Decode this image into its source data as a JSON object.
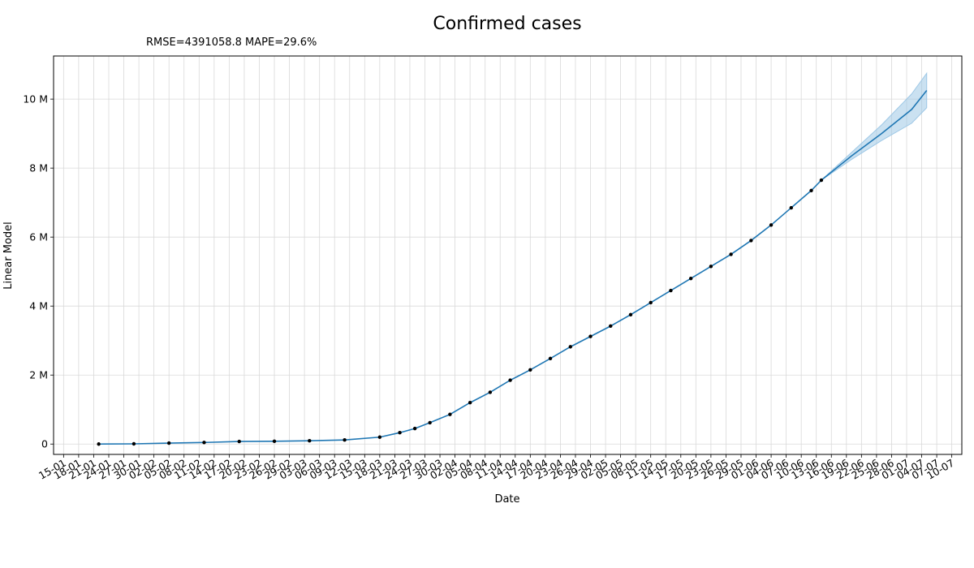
{
  "chart_data": {
    "type": "line",
    "title": "Confirmed cases",
    "subtitle": "RMSE=4391058.8 MAPE=29.6%",
    "xlabel": "Date",
    "ylabel": "Linear Model",
    "xlim": [
      "2020-01-13",
      "2020-07-12"
    ],
    "ylim": [
      -300000,
      11250000
    ],
    "grid": true,
    "x_ticks": [
      "15-01",
      "18-01",
      "21-01",
      "24-01",
      "27-01",
      "30-01",
      "02-02",
      "05-02",
      "08-02",
      "11-02",
      "14-02",
      "17-02",
      "20-02",
      "23-02",
      "26-02",
      "29-02",
      "03-03",
      "06-03",
      "09-03",
      "12-03",
      "15-03",
      "18-03",
      "21-03",
      "24-03",
      "27-03",
      "30-03",
      "02-04",
      "05-04",
      "08-04",
      "11-04",
      "14-04",
      "17-04",
      "20-04",
      "23-04",
      "26-04",
      "29-04",
      "02-05",
      "05-05",
      "08-05",
      "11-05",
      "14-05",
      "17-05",
      "20-05",
      "23-05",
      "26-05",
      "29-05",
      "01-06",
      "04-06",
      "07-06",
      "10-06",
      "13-06",
      "16-06",
      "19-06",
      "22-06",
      "25-06",
      "28-06",
      "01-07",
      "04-07",
      "07-07",
      "10-07"
    ],
    "y_ticks": [
      {
        "value": 0,
        "label": "0"
      },
      {
        "value": 2000000,
        "label": "2 M"
      },
      {
        "value": 4000000,
        "label": "4 M"
      },
      {
        "value": 6000000,
        "label": "6 M"
      },
      {
        "value": 8000000,
        "label": "8 M"
      },
      {
        "value": 10000000,
        "label": "10 M"
      }
    ],
    "colors": {
      "line": "#1f77b4",
      "band": "#9ec8e6",
      "points": "#000000",
      "grid": "#d9d9d9"
    },
    "observed": {
      "x": [
        "2020-01-22",
        "2020-01-29",
        "2020-02-05",
        "2020-02-12",
        "2020-02-19",
        "2020-02-26",
        "2020-03-04",
        "2020-03-11",
        "2020-03-18",
        "2020-03-22",
        "2020-03-25",
        "2020-03-28",
        "2020-04-01",
        "2020-04-05",
        "2020-04-09",
        "2020-04-13",
        "2020-04-17",
        "2020-04-21",
        "2020-04-25",
        "2020-04-29",
        "2020-05-03",
        "2020-05-07",
        "2020-05-11",
        "2020-05-15",
        "2020-05-19",
        "2020-05-23",
        "2020-05-27",
        "2020-05-31",
        "2020-06-04",
        "2020-06-08",
        "2020-06-12",
        "2020-06-14"
      ],
      "y": [
        0,
        6000,
        28000,
        45000,
        75000,
        80000,
        95000,
        118000,
        200000,
        330000,
        450000,
        620000,
        860000,
        1200000,
        1500000,
        1850000,
        2150000,
        2480000,
        2820000,
        3120000,
        3420000,
        3750000,
        4100000,
        4450000,
        4800000,
        5150000,
        5500000,
        5900000,
        6350000,
        6850000,
        7350000,
        7650000
      ]
    },
    "forecast": {
      "x": [
        "2020-06-14",
        "2020-06-20",
        "2020-06-26",
        "2020-07-02",
        "2020-07-05"
      ],
      "y": [
        7650000,
        8350000,
        9000000,
        9700000,
        10250000
      ],
      "upper": [
        7650000,
        8450000,
        9250000,
        10150000,
        10750000
      ],
      "lower": [
        7650000,
        8250000,
        8800000,
        9300000,
        9750000
      ]
    }
  }
}
